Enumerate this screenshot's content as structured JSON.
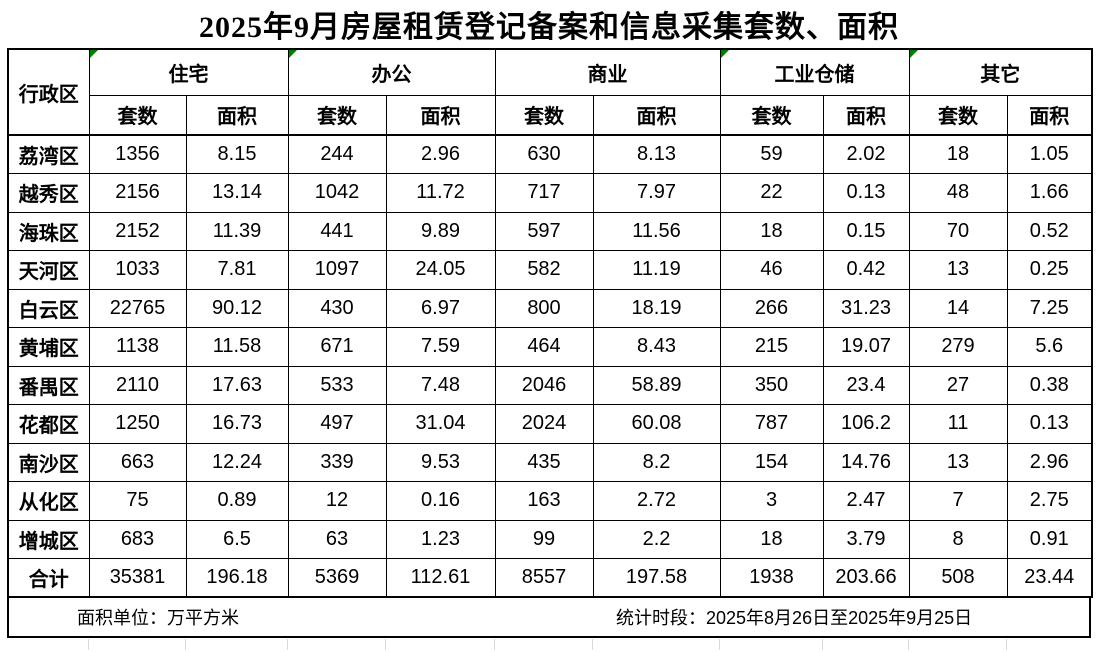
{
  "title": "2025年9月房屋租赁登记备案和信息采集套数、面积",
  "table": {
    "corner_header": "行政区",
    "groups": [
      {
        "label": "住宅",
        "has_marker": true
      },
      {
        "label": "办公",
        "has_marker": true
      },
      {
        "label": "商业",
        "has_marker": false
      },
      {
        "label": "工业仓储",
        "has_marker": true
      },
      {
        "label": "其它",
        "has_marker": true
      }
    ],
    "sub_headers": [
      "套数",
      "面积"
    ],
    "rows": [
      {
        "district": "荔湾区",
        "values": [
          "1356",
          "8.15",
          "244",
          "2.96",
          "630",
          "8.13",
          "59",
          "2.02",
          "18",
          "1.05"
        ]
      },
      {
        "district": "越秀区",
        "values": [
          "2156",
          "13.14",
          "1042",
          "11.72",
          "717",
          "7.97",
          "22",
          "0.13",
          "48",
          "1.66"
        ]
      },
      {
        "district": "海珠区",
        "values": [
          "2152",
          "11.39",
          "441",
          "9.89",
          "597",
          "11.56",
          "18",
          "0.15",
          "70",
          "0.52"
        ]
      },
      {
        "district": "天河区",
        "values": [
          "1033",
          "7.81",
          "1097",
          "24.05",
          "582",
          "11.19",
          "46",
          "0.42",
          "13",
          "0.25"
        ]
      },
      {
        "district": "白云区",
        "values": [
          "22765",
          "90.12",
          "430",
          "6.97",
          "800",
          "18.19",
          "266",
          "31.23",
          "14",
          "7.25"
        ]
      },
      {
        "district": "黄埔区",
        "values": [
          "1138",
          "11.58",
          "671",
          "7.59",
          "464",
          "8.43",
          "215",
          "19.07",
          "279",
          "5.6"
        ]
      },
      {
        "district": "番禺区",
        "values": [
          "2110",
          "17.63",
          "533",
          "7.48",
          "2046",
          "58.89",
          "350",
          "23.4",
          "27",
          "0.38"
        ]
      },
      {
        "district": "花都区",
        "values": [
          "1250",
          "16.73",
          "497",
          "31.04",
          "2024",
          "60.08",
          "787",
          "106.2",
          "11",
          "0.13"
        ]
      },
      {
        "district": "南沙区",
        "values": [
          "663",
          "12.24",
          "339",
          "9.53",
          "435",
          "8.2",
          "154",
          "14.76",
          "13",
          "2.96"
        ]
      },
      {
        "district": "从化区",
        "values": [
          "75",
          "0.89",
          "12",
          "0.16",
          "163",
          "2.72",
          "3",
          "2.47",
          "7",
          "2.75"
        ]
      },
      {
        "district": "增城区",
        "values": [
          "683",
          "6.5",
          "63",
          "1.23",
          "99",
          "2.2",
          "18",
          "3.79",
          "8",
          "0.91"
        ]
      },
      {
        "district": "合计",
        "values": [
          "35381",
          "196.18",
          "5369",
          "112.61",
          "8557",
          "197.58",
          "1938",
          "203.66",
          "508",
          "23.44"
        ]
      }
    ]
  },
  "footer": {
    "unit_note": "面积单位：万平方米",
    "period_note": "统计时段：2025年8月26日至2025年9月25日"
  },
  "colors": {
    "marker_green": "#008000",
    "border_black": "#000000",
    "faint_gridline_gray": "#d9d9d9",
    "background": "#ffffff"
  }
}
